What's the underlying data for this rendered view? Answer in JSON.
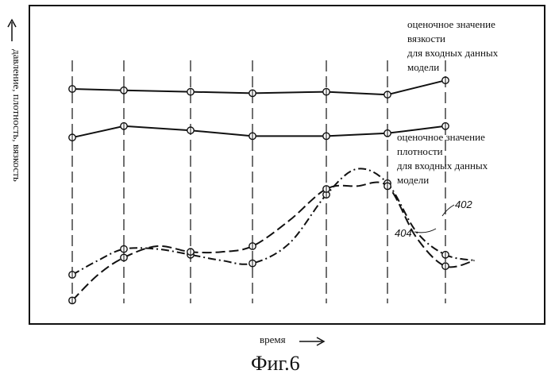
{
  "figure": {
    "caption": "Фиг.6"
  },
  "chart_data": {
    "type": "line",
    "ylabel": "давление, плотность, вязкость",
    "xlabel": "время",
    "x": [
      1,
      2,
      3,
      4,
      5,
      6,
      7
    ],
    "xlim": [
      0,
      8
    ],
    "ylim": [
      0,
      100
    ],
    "grid": "vertical-dashed",
    "series": [
      {
        "name": "оценочное значение вязкости для входных данных модели",
        "style": "solid",
        "x": [
          1,
          2,
          3,
          4,
          5,
          6,
          7
        ],
        "values": [
          80,
          79.5,
          79,
          78.5,
          79,
          78,
          83
        ]
      },
      {
        "name": "оценочное значение плотности для входных данных модели",
        "style": "solid",
        "x": [
          1,
          2,
          3,
          4,
          5,
          6,
          7
        ],
        "values": [
          63,
          67,
          65.5,
          63.5,
          63.5,
          64.5,
          67
        ]
      },
      {
        "name": "402",
        "style": "dash-dot",
        "x": [
          1,
          2,
          3,
          4,
          5,
          6,
          7
        ],
        "values": [
          15,
          24,
          22,
          19,
          43,
          47,
          22
        ]
      },
      {
        "name": "404",
        "style": "dashed",
        "x": [
          1,
          2,
          3,
          4,
          5,
          6,
          7
        ],
        "values": [
          6,
          21,
          23,
          25,
          45,
          46,
          18
        ]
      }
    ],
    "curve_402": {
      "label": "402",
      "x": [
        1,
        1.5,
        2,
        2.5,
        3,
        3.5,
        4,
        4.5,
        5,
        5.5,
        6,
        6.5,
        7,
        7.5
      ],
      "values": [
        15,
        20,
        24,
        24,
        22,
        20,
        19,
        26,
        43,
        52,
        47,
        30,
        22,
        20
      ]
    },
    "curve_404": {
      "label": "404",
      "x": [
        1,
        1.5,
        2,
        2.5,
        3,
        3.5,
        4,
        4.5,
        5,
        5.5,
        6,
        6.5,
        7,
        7.5
      ],
      "values": [
        6,
        15,
        21,
        25,
        23,
        23,
        25,
        34,
        45,
        46,
        46,
        28,
        18,
        20
      ]
    }
  }
}
